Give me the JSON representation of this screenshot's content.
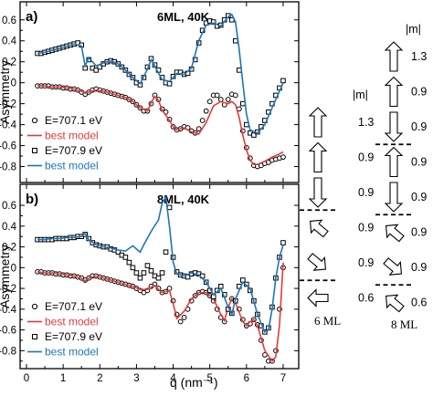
{
  "chart_data": [
    {
      "type": "scatter",
      "panel_label": "a)",
      "title": "6ML, 40K",
      "ylabel": "Asymmetry",
      "xlabel": "",
      "xlim": [
        0,
        7.25
      ],
      "ylim": [
        -0.9,
        0.72
      ],
      "xticks": [
        "0",
        "1",
        "2",
        "3",
        "4",
        "5",
        "6",
        "7"
      ],
      "yticks": [
        "0.6",
        "0.4",
        "0.2",
        "0",
        "-0.2",
        "-0.4",
        "-0.6",
        "-0.8"
      ],
      "legend": {
        "position": "bottom-left",
        "entries": [
          "E=707.1 eV",
          "best model",
          "E=707.9 eV",
          "best model"
        ]
      },
      "series": [
        {
          "name": "E=707.1 eV",
          "marker": "circle",
          "color": "#000000",
          "x": [
            0.3,
            0.4,
            0.5,
            0.6,
            0.7,
            0.8,
            0.9,
            1.0,
            1.1,
            1.2,
            1.3,
            1.4,
            1.5,
            1.6,
            1.7,
            1.8,
            1.9,
            2.0,
            2.1,
            2.2,
            2.3,
            2.4,
            2.5,
            2.6,
            2.7,
            2.8,
            2.9,
            3.0,
            3.1,
            3.2,
            3.3,
            3.4,
            3.5,
            3.6,
            3.7,
            3.8,
            3.9,
            4.0,
            4.1,
            4.2,
            4.3,
            4.4,
            4.5,
            4.6,
            4.7,
            4.8,
            4.9,
            5.0,
            5.1,
            5.2,
            5.3,
            5.4,
            5.5,
            5.6,
            5.7,
            5.8,
            5.9,
            6.0,
            6.1,
            6.2,
            6.3,
            6.4,
            6.5,
            6.6,
            6.7,
            6.8,
            6.9,
            7.0
          ],
          "y": [
            -0.03,
            -0.03,
            -0.03,
            -0.03,
            -0.04,
            -0.04,
            -0.04,
            -0.05,
            -0.05,
            -0.06,
            -0.06,
            -0.07,
            -0.09,
            -0.11,
            -0.09,
            -0.07,
            -0.06,
            -0.07,
            -0.08,
            -0.09,
            -0.1,
            -0.11,
            -0.12,
            -0.13,
            -0.14,
            -0.16,
            -0.18,
            -0.21,
            -0.24,
            -0.27,
            -0.27,
            -0.2,
            -0.12,
            -0.16,
            -0.25,
            -0.28,
            -0.35,
            -0.42,
            -0.45,
            -0.44,
            -0.42,
            -0.43,
            -0.46,
            -0.48,
            -0.44,
            -0.36,
            -0.27,
            -0.18,
            -0.12,
            -0.12,
            -0.16,
            -0.21,
            -0.16,
            -0.11,
            -0.12,
            -0.25,
            -0.46,
            -0.62,
            -0.72,
            -0.79,
            -0.8,
            -0.79,
            -0.77,
            -0.76,
            -0.74,
            -0.73,
            -0.72,
            -0.71
          ]
        },
        {
          "name": "best model",
          "line": true,
          "color": "#e23c3c",
          "x": [
            0.3,
            0.5,
            0.7,
            0.9,
            1.1,
            1.3,
            1.5,
            1.6,
            1.7,
            1.9,
            2.1,
            2.3,
            2.5,
            2.7,
            2.9,
            3.1,
            3.3,
            3.4,
            3.5,
            3.6,
            3.7,
            3.9,
            4.0,
            4.1,
            4.3,
            4.5,
            4.7,
            4.9,
            5.1,
            5.3,
            5.5,
            5.6,
            5.7,
            5.8,
            5.9,
            6.0,
            6.1,
            6.2,
            6.3,
            6.5,
            6.7,
            6.9,
            7.0
          ],
          "y": [
            -0.03,
            -0.03,
            -0.04,
            -0.04,
            -0.05,
            -0.06,
            -0.08,
            -0.1,
            -0.09,
            -0.07,
            -0.08,
            -0.1,
            -0.12,
            -0.14,
            -0.18,
            -0.24,
            -0.27,
            -0.19,
            -0.13,
            -0.17,
            -0.26,
            -0.36,
            -0.42,
            -0.45,
            -0.43,
            -0.47,
            -0.49,
            -0.38,
            -0.22,
            -0.18,
            -0.2,
            -0.18,
            -0.21,
            -0.33,
            -0.5,
            -0.64,
            -0.74,
            -0.78,
            -0.78,
            -0.75,
            -0.71,
            -0.68,
            -0.66
          ]
        },
        {
          "name": "E=707.9 eV",
          "marker": "square",
          "color": "#000000",
          "x": [
            0.3,
            0.4,
            0.5,
            0.6,
            0.7,
            0.8,
            0.9,
            1.0,
            1.1,
            1.2,
            1.3,
            1.4,
            1.5,
            1.6,
            1.7,
            1.8,
            1.9,
            2.0,
            2.1,
            2.2,
            2.3,
            2.4,
            2.5,
            2.6,
            2.7,
            2.8,
            2.9,
            3.0,
            3.1,
            3.2,
            3.3,
            3.4,
            3.5,
            3.6,
            3.7,
            3.8,
            3.9,
            4.0,
            4.1,
            4.2,
            4.3,
            4.4,
            4.5,
            4.6,
            4.7,
            4.8,
            4.9,
            5.0,
            5.1,
            5.2,
            5.3,
            5.4,
            5.5,
            5.6,
            5.7,
            5.8,
            5.9,
            6.0,
            6.1,
            6.2,
            6.3,
            6.4,
            6.5,
            6.6,
            6.7,
            6.8,
            6.9,
            7.0
          ],
          "y": [
            0.28,
            0.28,
            0.29,
            0.3,
            0.31,
            0.32,
            0.33,
            0.34,
            0.35,
            0.36,
            0.37,
            0.38,
            0.36,
            0.14,
            0.22,
            0.14,
            0.12,
            0.15,
            0.18,
            0.2,
            0.21,
            0.2,
            0.18,
            0.15,
            0.12,
            0.08,
            0.05,
            0.0,
            -0.02,
            0.05,
            0.15,
            0.23,
            0.17,
            0.12,
            0.05,
            0.0,
            -0.01,
            0.06,
            0.1,
            0.1,
            0.08,
            0.09,
            0.13,
            0.22,
            0.38,
            0.5,
            0.57,
            0.59,
            0.58,
            0.54,
            0.55,
            0.6,
            0.64,
            0.6,
            0.4,
            0.12,
            -0.2,
            -0.4,
            -0.48,
            -0.5,
            -0.47,
            -0.42,
            -0.36,
            -0.28,
            -0.2,
            -0.12,
            -0.05,
            0.02
          ]
        },
        {
          "name": "best model",
          "line": true,
          "color": "#1f74b6",
          "x": [
            0.3,
            0.5,
            0.7,
            0.9,
            1.1,
            1.3,
            1.5,
            1.6,
            1.7,
            1.9,
            2.1,
            2.3,
            2.5,
            2.7,
            2.9,
            3.1,
            3.3,
            3.4,
            3.5,
            3.6,
            3.7,
            3.9,
            4.1,
            4.3,
            4.5,
            4.7,
            4.9,
            5.1,
            5.3,
            5.5,
            5.6,
            5.7,
            5.8,
            5.9,
            6.0,
            6.1,
            6.3,
            6.5,
            6.7,
            6.9,
            7.0
          ],
          "y": [
            0.28,
            0.29,
            0.31,
            0.33,
            0.35,
            0.37,
            0.35,
            0.16,
            0.24,
            0.16,
            0.19,
            0.21,
            0.18,
            0.12,
            0.05,
            -0.01,
            0.13,
            0.22,
            0.16,
            0.09,
            0.03,
            0.01,
            0.09,
            0.08,
            0.14,
            0.4,
            0.55,
            0.57,
            0.54,
            0.63,
            0.65,
            0.58,
            0.32,
            0.0,
            -0.3,
            -0.45,
            -0.48,
            -0.4,
            -0.24,
            -0.08,
            0.0
          ]
        }
      ]
    },
    {
      "type": "scatter",
      "panel_label": "b)",
      "title": "8ML, 40K",
      "ylabel": "Asymmetry",
      "xlabel": "q (nm⁻¹)",
      "xlim": [
        0,
        7.25
      ],
      "ylim": [
        -0.92,
        0.75
      ],
      "xticks": [
        "0",
        "1",
        "2",
        "3",
        "4",
        "5",
        "6",
        "7"
      ],
      "yticks": [
        "0.6",
        "0.4",
        "0.2",
        "0",
        "-0.2",
        "-0.4",
        "-0.6",
        "-0.8"
      ],
      "legend": {
        "position": "bottom-left",
        "entries": [
          "E=707.1 eV",
          "best model",
          "E=707.9 eV",
          "best model"
        ]
      },
      "series": [
        {
          "name": "E=707.1 eV",
          "marker": "circle",
          "color": "#000000",
          "x": [
            0.3,
            0.4,
            0.5,
            0.6,
            0.7,
            0.8,
            0.9,
            1.0,
            1.1,
            1.2,
            1.3,
            1.4,
            1.5,
            1.6,
            1.7,
            1.8,
            1.9,
            2.0,
            2.1,
            2.2,
            2.3,
            2.4,
            2.5,
            2.6,
            2.7,
            2.8,
            2.9,
            3.0,
            3.1,
            3.2,
            3.3,
            3.4,
            3.5,
            3.6,
            3.7,
            3.8,
            3.9,
            4.0,
            4.1,
            4.2,
            4.3,
            4.4,
            4.5,
            4.6,
            4.7,
            4.8,
            4.9,
            5.0,
            5.1,
            5.2,
            5.3,
            5.4,
            5.5,
            5.6,
            5.7,
            5.8,
            5.9,
            6.0,
            6.1,
            6.2,
            6.3,
            6.4,
            6.5,
            6.6,
            6.7,
            6.8,
            6.9,
            7.0
          ],
          "y": [
            -0.04,
            -0.04,
            -0.05,
            -0.05,
            -0.05,
            -0.06,
            -0.06,
            -0.07,
            -0.07,
            -0.08,
            -0.08,
            -0.09,
            -0.1,
            -0.12,
            -0.1,
            -0.08,
            -0.08,
            -0.09,
            -0.1,
            -0.11,
            -0.12,
            -0.13,
            -0.14,
            -0.15,
            -0.16,
            -0.17,
            -0.18,
            -0.2,
            -0.22,
            -0.24,
            -0.22,
            -0.18,
            -0.16,
            -0.2,
            -0.24,
            -0.23,
            -0.2,
            -0.32,
            -0.45,
            -0.52,
            -0.48,
            -0.4,
            -0.32,
            -0.27,
            -0.24,
            -0.23,
            -0.24,
            -0.27,
            -0.32,
            -0.4,
            -0.48,
            -0.52,
            -0.4,
            -0.3,
            -0.32,
            -0.4,
            -0.5,
            -0.56,
            -0.54,
            -0.5,
            -0.55,
            -0.7,
            -0.84,
            -0.9,
            -0.9,
            -0.8,
            -0.4,
            0.0
          ]
        },
        {
          "name": "best model",
          "line": true,
          "color": "#e23c3c",
          "x": [
            0.3,
            0.5,
            0.7,
            0.9,
            1.1,
            1.3,
            1.5,
            1.6,
            1.7,
            1.9,
            2.1,
            2.3,
            2.5,
            2.7,
            2.9,
            3.1,
            3.3,
            3.5,
            3.6,
            3.7,
            3.9,
            4.0,
            4.1,
            4.3,
            4.5,
            4.7,
            4.9,
            5.1,
            5.3,
            5.4,
            5.5,
            5.6,
            5.7,
            5.9,
            6.0,
            6.1,
            6.2,
            6.3,
            6.5,
            6.7,
            6.8,
            6.9,
            7.0
          ],
          "y": [
            -0.04,
            -0.05,
            -0.05,
            -0.06,
            -0.07,
            -0.08,
            -0.1,
            -0.13,
            -0.1,
            -0.08,
            -0.1,
            -0.12,
            -0.14,
            -0.16,
            -0.18,
            -0.21,
            -0.21,
            -0.17,
            -0.21,
            -0.24,
            -0.22,
            -0.35,
            -0.49,
            -0.42,
            -0.3,
            -0.24,
            -0.24,
            -0.3,
            -0.45,
            -0.51,
            -0.38,
            -0.3,
            -0.34,
            -0.52,
            -0.56,
            -0.52,
            -0.5,
            -0.56,
            -0.8,
            -0.9,
            -0.86,
            -0.55,
            0.05
          ]
        },
        {
          "name": "E=707.9 eV",
          "marker": "square",
          "color": "#000000",
          "x": [
            0.3,
            0.4,
            0.5,
            0.6,
            0.7,
            0.8,
            0.9,
            1.0,
            1.1,
            1.2,
            1.3,
            1.4,
            1.5,
            1.6,
            1.7,
            1.8,
            1.9,
            2.0,
            2.1,
            2.2,
            2.3,
            2.4,
            2.5,
            2.6,
            2.7,
            2.8,
            2.9,
            3.0,
            3.1,
            3.2,
            3.3,
            3.4,
            3.5,
            3.6,
            3.7,
            3.8,
            3.9,
            4.0,
            4.1,
            4.2,
            4.3,
            4.4,
            4.5,
            4.6,
            4.7,
            4.8,
            4.9,
            5.0,
            5.1,
            5.2,
            5.3,
            5.4,
            5.5,
            5.6,
            5.7,
            5.8,
            5.9,
            6.0,
            6.1,
            6.2,
            6.3,
            6.4,
            6.5,
            6.6,
            6.7,
            6.8,
            6.9,
            7.0
          ],
          "y": [
            0.27,
            0.27,
            0.27,
            0.27,
            0.27,
            0.28,
            0.28,
            0.28,
            0.28,
            0.29,
            0.29,
            0.3,
            0.3,
            0.32,
            0.28,
            0.24,
            0.22,
            0.21,
            0.2,
            0.2,
            0.18,
            0.17,
            0.15,
            0.12,
            0.1,
            0.05,
            0.0,
            -0.05,
            -0.1,
            -0.05,
            0.02,
            -0.03,
            -0.08,
            -0.1,
            -0.05,
            0.15,
            0.58,
            0.1,
            -0.04,
            -0.07,
            -0.08,
            -0.09,
            -0.06,
            -0.05,
            -0.06,
            -0.08,
            -0.14,
            -0.22,
            -0.28,
            -0.22,
            -0.18,
            -0.26,
            -0.4,
            -0.44,
            -0.32,
            -0.18,
            -0.12,
            -0.16,
            -0.22,
            -0.32,
            -0.45,
            -0.56,
            -0.62,
            -0.58,
            -0.38,
            -0.1,
            0.1,
            0.24
          ]
        },
        {
          "name": "best model",
          "line": true,
          "color": "#1f74b6",
          "x": [
            0.3,
            0.5,
            0.7,
            0.9,
            1.1,
            1.3,
            1.5,
            1.6,
            1.7,
            1.9,
            2.1,
            2.3,
            2.5,
            2.7,
            2.9,
            3.1,
            3.2,
            3.4,
            3.6,
            3.7,
            3.8,
            3.9,
            4.0,
            4.1,
            4.3,
            4.5,
            4.7,
            4.9,
            5.1,
            5.3,
            5.5,
            5.6,
            5.7,
            5.9,
            6.1,
            6.3,
            6.5,
            6.6,
            6.7,
            6.8,
            6.9,
            7.0
          ],
          "y": [
            0.27,
            0.27,
            0.28,
            0.28,
            0.29,
            0.29,
            0.3,
            0.33,
            0.27,
            0.22,
            0.2,
            0.19,
            0.17,
            0.16,
            0.21,
            0.15,
            0.22,
            0.35,
            0.46,
            0.62,
            0.68,
            0.4,
            0.05,
            -0.06,
            -0.08,
            -0.05,
            -0.07,
            -0.14,
            -0.26,
            -0.2,
            -0.38,
            -0.45,
            -0.3,
            -0.14,
            -0.2,
            -0.45,
            -0.62,
            -0.6,
            -0.4,
            -0.1,
            0.1,
            0.22
          ]
        }
      ]
    }
  ],
  "side": {
    "columns": [
      {
        "title": "6 ML",
        "header": "|m|",
        "entries": [
          {
            "value": "1.3",
            "direction": "up"
          },
          {
            "value": "0.9",
            "direction": "up"
          },
          {
            "value": "0.9",
            "direction": "down"
          },
          {
            "value": "0.9",
            "direction": "up-left"
          },
          {
            "value": "0.9",
            "direction": "down-right"
          },
          {
            "value": "0.6",
            "direction": "left"
          }
        ]
      },
      {
        "title": "8 ML",
        "header": "|m|",
        "entries": [
          {
            "value": "1.3",
            "direction": "up"
          },
          {
            "value": "0.9",
            "direction": "up"
          },
          {
            "value": "0.9",
            "direction": "down"
          },
          {
            "value": "0.9",
            "direction": "up"
          },
          {
            "value": "0.9",
            "direction": "down"
          },
          {
            "value": "0.9",
            "direction": "up-left"
          },
          {
            "value": "0.9",
            "direction": "down-right"
          },
          {
            "value": "0.6",
            "direction": "up-left"
          }
        ]
      }
    ]
  }
}
